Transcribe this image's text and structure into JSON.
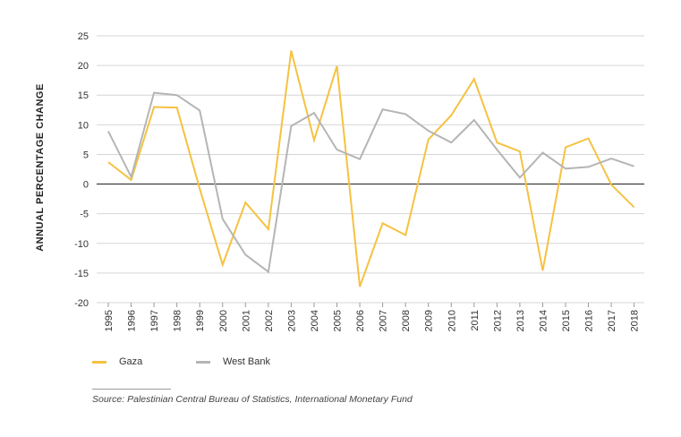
{
  "chart_data": {
    "type": "line",
    "title": "",
    "xlabel": "",
    "ylabel": "ANNUAL PERCENTAGE CHANGE",
    "ylim": [
      -20,
      25
    ],
    "yticks": [
      25,
      20,
      15,
      10,
      5,
      0,
      -5,
      -10,
      -15,
      -20
    ],
    "x": [
      "1995",
      "1996",
      "1997",
      "1998",
      "1999",
      "2000",
      "2001",
      "2002",
      "2003",
      "2004",
      "2005",
      "2006",
      "2007",
      "2008",
      "2009",
      "2010",
      "2011",
      "2012",
      "2013",
      "2014",
      "2015",
      "2016",
      "2017",
      "2018"
    ],
    "series": [
      {
        "name": "Gaza",
        "color": "#f5c242",
        "values": [
          3.7,
          0.7,
          13.0,
          12.9,
          -0.8,
          -13.6,
          -3.1,
          -7.6,
          22.5,
          7.4,
          19.9,
          -17.3,
          -6.6,
          -8.6,
          7.5,
          11.6,
          17.7,
          7.0,
          5.5,
          -14.6,
          6.2,
          7.7,
          -0.1,
          -3.9
        ]
      },
      {
        "name": "West Bank",
        "color": "#b5b5b5",
        "values": [
          8.9,
          1.2,
          15.4,
          15.0,
          12.4,
          -5.9,
          -11.9,
          -14.8,
          9.8,
          12.0,
          5.8,
          4.2,
          12.6,
          11.8,
          9.0,
          7.0,
          10.8,
          5.8,
          1.1,
          5.3,
          2.6,
          2.9,
          4.3,
          3.0
        ]
      }
    ],
    "legend": "bottom-left"
  },
  "source": "Source: Palestinian Central Bureau of Statistics, International Monetary Fund"
}
